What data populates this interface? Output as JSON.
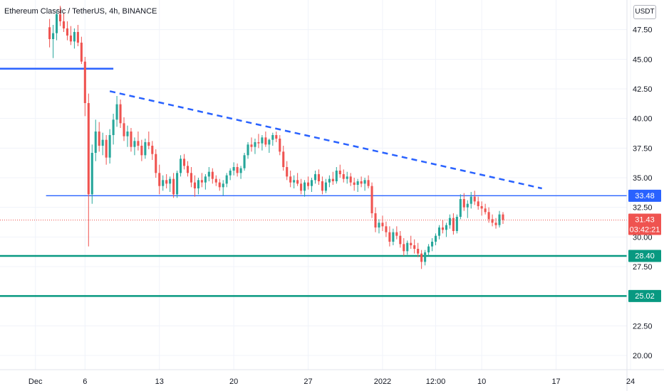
{
  "header": {
    "title": "Ethereum Classic / TetherUS, 4h, BINANCE",
    "currency": "USDT"
  },
  "colors": {
    "up": "#26a69a",
    "down": "#ef5350",
    "level_blue": "#2962ff",
    "trend_blue": "#2962ff",
    "level_green": "#089981",
    "grid": "#f0f3fa",
    "last_price": "#ef5350"
  },
  "chart_data": {
    "type": "candlestick",
    "title": "Ethereum Classic / TetherUS, 4h, BINANCE",
    "ylim": [
      18.8,
      50.0
    ],
    "x_index_range": [
      -14,
      163
    ],
    "y_ticks": [
      "47.50",
      "45.00",
      "42.50",
      "40.00",
      "37.50",
      "35.00",
      "32.50",
      "30.00",
      "27.50",
      "22.50",
      "20.00"
    ],
    "x_ticks": [
      {
        "label": "Dec",
        "index": -4
      },
      {
        "label": "6",
        "index": 10
      },
      {
        "label": "13",
        "index": 31
      },
      {
        "label": "20",
        "index": 52
      },
      {
        "label": "27",
        "index": 73
      },
      {
        "label": "2022",
        "index": 94
      },
      {
        "label": "12:00",
        "index": 109
      },
      {
        "label": "10",
        "index": 122
      },
      {
        "label": "17",
        "index": 143
      },
      {
        "label": "24",
        "index": 164
      }
    ],
    "grid": true,
    "price_levels": [
      {
        "value": 33.48,
        "label": "33.48",
        "style": "thin-blue"
      },
      {
        "value": 28.4,
        "label": "28.40",
        "style": "green"
      },
      {
        "value": 25.02,
        "label": "25.02",
        "style": "green"
      }
    ],
    "resistance_segment": {
      "value": 44.2,
      "from_index": -14,
      "to_index": 18
    },
    "trendline": {
      "from_index": 17,
      "from_value": 42.3,
      "to_index": 139,
      "to_value": 34.1
    },
    "last_price": {
      "value": 31.43,
      "label": "31.43",
      "countdown": "03:42:21"
    },
    "candles": [
      [
        47.7,
        48.4,
        46.0,
        46.7
      ],
      [
        46.7,
        47.9,
        45.1,
        47.2
      ],
      [
        47.2,
        49.1,
        46.6,
        48.8
      ],
      [
        48.8,
        49.5,
        47.8,
        48.2
      ],
      [
        48.2,
        48.9,
        47.3,
        47.6
      ],
      [
        47.6,
        48.2,
        46.6,
        47.0
      ],
      [
        47.0,
        47.8,
        46.2,
        46.5
      ],
      [
        46.5,
        47.6,
        45.9,
        47.3
      ],
      [
        47.3,
        47.9,
        46.1,
        46.4
      ],
      [
        46.4,
        46.9,
        44.6,
        44.8
      ],
      [
        44.8,
        45.2,
        40.2,
        41.3
      ],
      [
        41.3,
        42.1,
        29.2,
        33.6
      ],
      [
        33.6,
        37.8,
        32.8,
        37.1
      ],
      [
        37.1,
        39.9,
        36.4,
        38.9
      ],
      [
        38.9,
        39.7,
        37.2,
        37.7
      ],
      [
        37.7,
        38.8,
        36.9,
        38.2
      ],
      [
        38.2,
        38.6,
        36.1,
        36.7
      ],
      [
        36.7,
        39.1,
        36.2,
        38.6
      ],
      [
        38.6,
        40.4,
        37.8,
        39.9
      ],
      [
        39.9,
        41.9,
        39.3,
        41.2
      ],
      [
        41.2,
        41.6,
        39.2,
        39.6
      ],
      [
        39.6,
        40.1,
        38.1,
        38.5
      ],
      [
        38.5,
        39.4,
        37.6,
        38.9
      ],
      [
        38.9,
        39.2,
        37.2,
        37.6
      ],
      [
        37.6,
        38.4,
        36.9,
        38.1
      ],
      [
        38.1,
        38.9,
        37.3,
        37.7
      ],
      [
        37.7,
        38.2,
        36.4,
        36.9
      ],
      [
        36.9,
        38.3,
        36.6,
        38.0
      ],
      [
        38.0,
        38.9,
        37.4,
        37.7
      ],
      [
        37.7,
        38.1,
        36.5,
        37.0
      ],
      [
        37.0,
        37.4,
        35.0,
        35.4
      ],
      [
        35.4,
        36.1,
        33.6,
        34.3
      ],
      [
        34.3,
        35.2,
        33.9,
        34.8
      ],
      [
        34.8,
        35.3,
        34.1,
        34.5
      ],
      [
        34.5,
        35.1,
        33.8,
        34.9
      ],
      [
        34.9,
        35.4,
        33.3,
        33.6
      ],
      [
        33.6,
        35.6,
        33.3,
        35.4
      ],
      [
        35.4,
        36.9,
        35.1,
        36.6
      ],
      [
        36.6,
        37.0,
        35.7,
        36.0
      ],
      [
        36.0,
        36.4,
        35.1,
        35.4
      ],
      [
        35.4,
        35.9,
        34.2,
        34.6
      ],
      [
        34.6,
        35.2,
        33.4,
        34.1
      ],
      [
        34.1,
        35.0,
        33.6,
        34.8
      ],
      [
        34.8,
        35.4,
        34.2,
        34.6
      ],
      [
        34.6,
        35.3,
        34.0,
        35.1
      ],
      [
        35.1,
        35.9,
        34.7,
        35.5
      ],
      [
        35.5,
        35.8,
        34.5,
        34.9
      ],
      [
        34.9,
        35.2,
        34.3,
        34.6
      ],
      [
        34.6,
        34.9,
        33.9,
        34.2
      ],
      [
        34.2,
        34.8,
        33.5,
        34.5
      ],
      [
        34.5,
        35.4,
        34.2,
        35.2
      ],
      [
        35.2,
        35.8,
        34.8,
        35.6
      ],
      [
        35.6,
        36.3,
        35.2,
        35.9
      ],
      [
        35.9,
        36.2,
        35.1,
        35.4
      ],
      [
        35.4,
        36.0,
        34.9,
        35.8
      ],
      [
        35.8,
        37.1,
        35.6,
        36.9
      ],
      [
        36.9,
        38.0,
        36.6,
        37.8
      ],
      [
        37.8,
        38.4,
        37.2,
        37.6
      ],
      [
        37.6,
        38.3,
        37.0,
        38.0
      ],
      [
        38.0,
        38.7,
        37.5,
        37.9
      ],
      [
        37.9,
        38.6,
        37.3,
        38.4
      ],
      [
        38.4,
        38.9,
        37.6,
        37.8
      ],
      [
        37.8,
        38.3,
        37.1,
        38.2
      ],
      [
        38.2,
        38.8,
        37.7,
        38.6
      ],
      [
        38.6,
        38.9,
        38.0,
        38.3
      ],
      [
        38.3,
        38.6,
        36.9,
        37.2
      ],
      [
        37.2,
        37.7,
        35.6,
        35.9
      ],
      [
        35.9,
        36.4,
        34.8,
        35.1
      ],
      [
        35.1,
        35.6,
        34.2,
        34.6
      ],
      [
        34.6,
        35.2,
        34.1,
        34.8
      ],
      [
        34.8,
        35.4,
        34.3,
        34.5
      ],
      [
        34.5,
        34.9,
        33.6,
        33.9
      ],
      [
        33.9,
        34.8,
        33.4,
        34.6
      ],
      [
        34.6,
        35.1,
        34.0,
        34.3
      ],
      [
        34.3,
        35.0,
        33.8,
        34.8
      ],
      [
        34.8,
        35.6,
        34.5,
        35.3
      ],
      [
        35.3,
        35.7,
        34.4,
        34.7
      ],
      [
        34.7,
        35.1,
        33.6,
        33.9
      ],
      [
        33.9,
        34.9,
        33.7,
        34.6
      ],
      [
        34.6,
        35.2,
        34.2,
        34.9
      ],
      [
        34.9,
        35.5,
        34.4,
        34.7
      ],
      [
        34.7,
        35.9,
        34.5,
        35.6
      ],
      [
        35.6,
        36.1,
        35.0,
        35.3
      ],
      [
        35.3,
        35.7,
        34.6,
        34.9
      ],
      [
        34.9,
        35.5,
        34.5,
        35.1
      ],
      [
        35.1,
        35.4,
        34.3,
        34.6
      ],
      [
        34.6,
        35.0,
        33.9,
        34.4
      ],
      [
        34.4,
        34.9,
        33.8,
        34.7
      ],
      [
        34.7,
        35.1,
        34.2,
        34.5
      ],
      [
        34.5,
        35.0,
        33.9,
        34.8
      ],
      [
        34.8,
        35.2,
        34.1,
        34.3
      ],
      [
        34.3,
        34.6,
        31.6,
        32.0
      ],
      [
        32.0,
        32.5,
        30.4,
        30.8
      ],
      [
        30.8,
        31.5,
        30.3,
        31.2
      ],
      [
        31.2,
        31.8,
        30.5,
        30.9
      ],
      [
        30.9,
        31.3,
        30.0,
        30.4
      ],
      [
        30.4,
        30.9,
        29.2,
        29.6
      ],
      [
        29.6,
        30.7,
        29.3,
        30.4
      ],
      [
        30.4,
        30.9,
        29.8,
        30.1
      ],
      [
        30.1,
        30.5,
        29.1,
        29.4
      ],
      [
        29.4,
        29.9,
        28.4,
        28.8
      ],
      [
        28.8,
        29.7,
        28.5,
        29.5
      ],
      [
        29.5,
        30.1,
        29.0,
        29.3
      ],
      [
        29.3,
        29.8,
        28.6,
        29.0
      ],
      [
        29.0,
        29.5,
        28.3,
        28.6
      ],
      [
        28.6,
        28.9,
        27.3,
        27.9
      ],
      [
        27.9,
        28.9,
        27.6,
        28.7
      ],
      [
        28.7,
        29.4,
        28.4,
        29.2
      ],
      [
        29.2,
        29.9,
        28.8,
        29.6
      ],
      [
        29.6,
        30.3,
        29.3,
        30.1
      ],
      [
        30.1,
        31.0,
        29.8,
        30.8
      ],
      [
        30.8,
        31.4,
        30.3,
        30.6
      ],
      [
        30.6,
        31.2,
        30.0,
        31.0
      ],
      [
        31.0,
        31.9,
        30.7,
        31.6
      ],
      [
        31.6,
        32.0,
        30.2,
        30.5
      ],
      [
        30.5,
        31.9,
        30.3,
        31.7
      ],
      [
        31.7,
        33.6,
        31.5,
        33.2
      ],
      [
        33.2,
        33.7,
        32.2,
        32.5
      ],
      [
        32.5,
        33.1,
        31.6,
        32.8
      ],
      [
        32.8,
        33.8,
        32.4,
        33.4
      ],
      [
        33.4,
        33.9,
        32.7,
        33.0
      ],
      [
        33.0,
        33.4,
        32.3,
        32.6
      ],
      [
        32.6,
        33.0,
        31.8,
        32.4
      ],
      [
        32.4,
        32.8,
        31.9,
        32.1
      ],
      [
        32.1,
        32.5,
        31.2,
        31.5
      ],
      [
        31.5,
        31.9,
        30.9,
        31.2
      ],
      [
        31.2,
        31.6,
        30.7,
        31.0
      ],
      [
        31.0,
        32.2,
        30.8,
        31.9
      ],
      [
        31.9,
        32.1,
        31.1,
        31.43
      ]
    ]
  }
}
